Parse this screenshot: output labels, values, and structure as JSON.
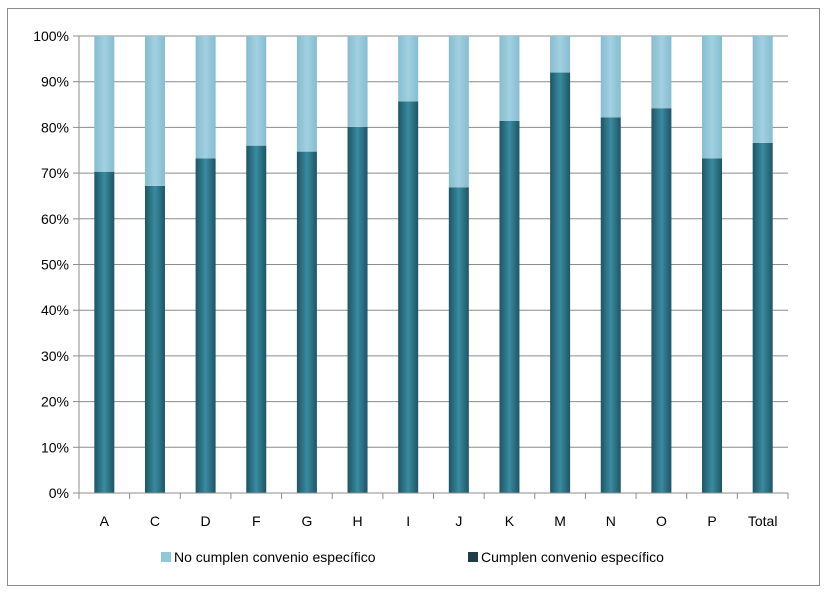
{
  "chart_data": {
    "type": "bar",
    "stacked": true,
    "categories": [
      "A",
      "C",
      "D",
      "F",
      "G",
      "H",
      "I",
      "J",
      "K",
      "M",
      "N",
      "O",
      "P",
      "Total"
    ],
    "series": [
      {
        "name": "Cumplen convenio específico",
        "color": "#2e7588",
        "values": [
          70.3,
          67.2,
          73.2,
          76.0,
          74.7,
          80.1,
          85.7,
          66.9,
          81.4,
          92.0,
          82.2,
          84.2,
          73.2,
          76.6
        ]
      },
      {
        "name": "No cumplen convenio específico",
        "color": "#93c6d9",
        "values": [
          29.7,
          32.8,
          26.8,
          24.0,
          25.3,
          19.9,
          14.3,
          33.1,
          18.6,
          8.0,
          17.8,
          15.8,
          26.8,
          23.4
        ]
      }
    ],
    "ylim": [
      0,
      100
    ],
    "yticks": [
      "0%",
      "10%",
      "20%",
      "30%",
      "40%",
      "50%",
      "60%",
      "70%",
      "80%",
      "90%",
      "100%"
    ],
    "grid": true,
    "legend": {
      "position": "bottom",
      "entries": [
        "No cumplen convenio específico",
        "Cumplen convenio específico"
      ],
      "swatch_colors": [
        "#93c6d9",
        "#1f3e4a"
      ]
    }
  }
}
